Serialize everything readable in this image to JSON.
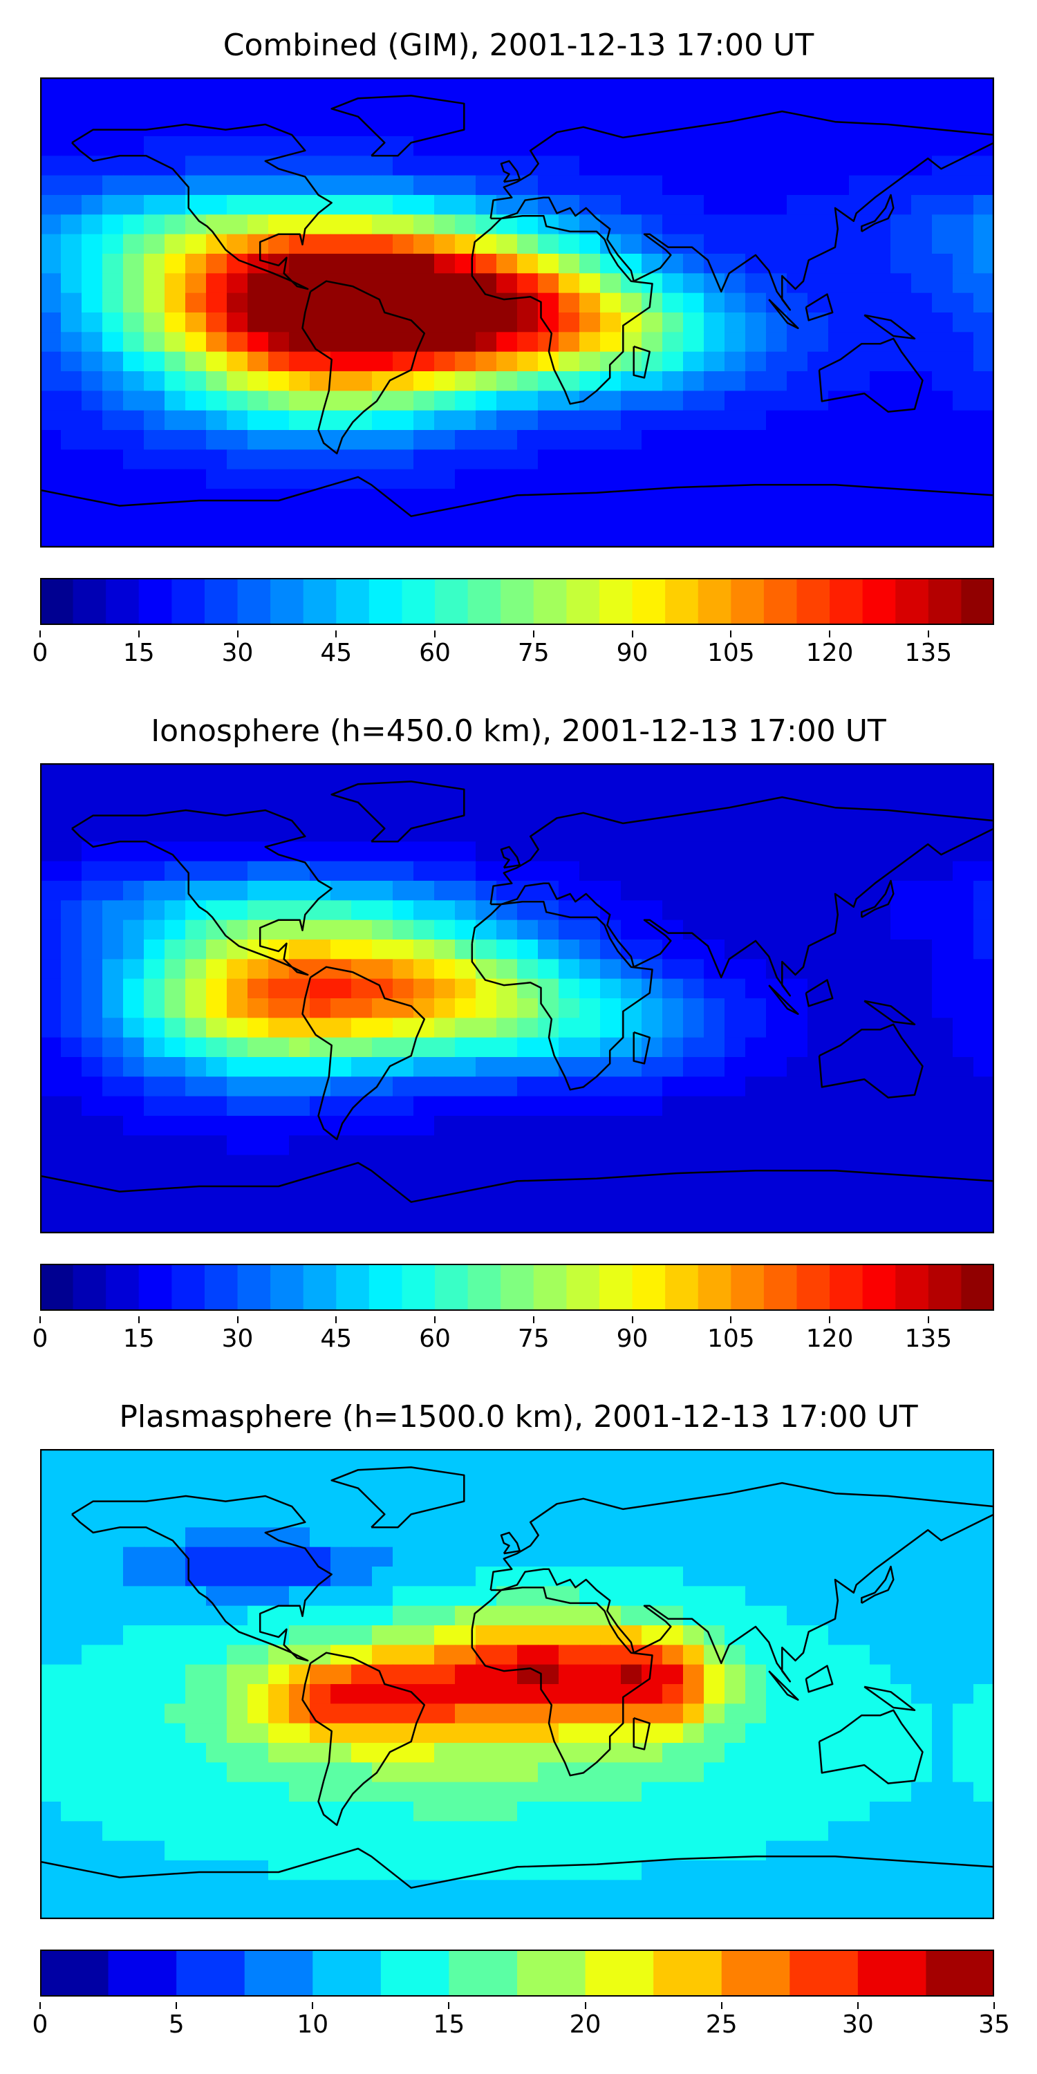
{
  "panels": [
    {
      "title": "Combined (GIM), 2001-12-13 17:00 UT",
      "colorbar": {
        "ticks": [
          "0",
          "15",
          "30",
          "45",
          "60",
          "75",
          "90",
          "105",
          "120",
          "135"
        ],
        "vmin": 0,
        "vmax": 145,
        "levels": 29
      },
      "field": [
        {
          "lon": -100,
          "lat": 30,
          "amp": 30,
          "sx": 70,
          "sy": 14
        },
        {
          "lon": -55,
          "lat": 5,
          "amp": 95,
          "sx": 50,
          "sy": 18
        },
        {
          "lon": -95,
          "lat": 0,
          "amp": 55,
          "sx": 45,
          "sy": 22
        },
        {
          "lon": -10,
          "lat": 0,
          "amp": 55,
          "sx": 40,
          "sy": 18
        },
        {
          "lon": 40,
          "lat": -10,
          "amp": 35,
          "sx": 40,
          "sy": 15
        },
        {
          "lon": -70,
          "lat": -30,
          "amp": 35,
          "sx": 40,
          "sy": 15
        }
      ],
      "base": 18
    },
    {
      "title": "Ionosphere  (h=450.0 km), 2001-12-13 17:00 UT",
      "colorbar": {
        "ticks": [
          "0",
          "15",
          "30",
          "45",
          "60",
          "75",
          "90",
          "105",
          "120",
          "135"
        ],
        "vmin": 0,
        "vmax": 145,
        "levels": 29
      },
      "field": [
        {
          "lon": -95,
          "lat": 35,
          "amp": 25,
          "sx": 60,
          "sy": 12
        },
        {
          "lon": -70,
          "lat": 5,
          "amp": 65,
          "sx": 45,
          "sy": 18
        },
        {
          "lon": -100,
          "lat": -5,
          "amp": 45,
          "sx": 40,
          "sy": 22
        },
        {
          "lon": -15,
          "lat": 0,
          "amp": 40,
          "sx": 35,
          "sy": 18
        },
        {
          "lon": 40,
          "lat": -10,
          "amp": 25,
          "sx": 35,
          "sy": 15
        }
      ],
      "base": 12
    },
    {
      "title": "Plasmasphere (h=1500.0 km), 2001-12-13 17:00 UT",
      "colorbar": {
        "ticks": [
          "0",
          "5",
          "10",
          "15",
          "20",
          "25",
          "30",
          "35"
        ],
        "vmin": 0,
        "vmax": 35,
        "levels": 14
      },
      "field": [
        {
          "lon": 10,
          "lat": 5,
          "amp": 17,
          "sx": 35,
          "sy": 15
        },
        {
          "lon": -65,
          "lat": -5,
          "amp": 13,
          "sx": 28,
          "sy": 12
        },
        {
          "lon": 55,
          "lat": 0,
          "amp": 10,
          "sx": 15,
          "sy": 12
        },
        {
          "lon": -20,
          "lat": -20,
          "amp": 6,
          "sx": 80,
          "sy": 25
        },
        {
          "lon": -100,
          "lat": 45,
          "amp": -7,
          "sx": 35,
          "sy": 8
        }
      ],
      "base": 12
    }
  ],
  "colormap": "jet"
}
